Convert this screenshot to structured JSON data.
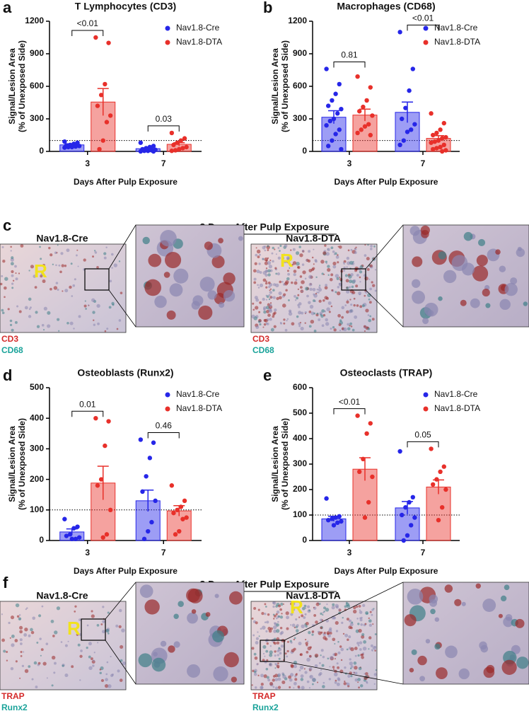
{
  "chart_data": [
    {
      "panel": "a",
      "type": "bar",
      "title": "T Lymphocytes (CD3)",
      "ylabel": [
        "Signal/Lesion Area",
        "(% of Unexposed Side)"
      ],
      "xlabel": "Days After Pulp Exposure",
      "categories": [
        "3",
        "7"
      ],
      "ylim": [
        0,
        1200
      ],
      "yticks": [
        0,
        300,
        600,
        900,
        1200
      ],
      "refline": 100,
      "comparisons": [
        "<0.01",
        "0.03"
      ],
      "series": [
        {
          "name": "Nav1.8-Cre",
          "color": "#2626e8",
          "values": [
            60,
            25
          ],
          "errors": [
            10,
            8
          ],
          "points": [
            [
              90,
              80,
              70,
              60,
              55,
              50,
              45,
              40,
              40,
              35
            ],
            [
              80,
              50,
              40,
              30,
              20,
              15,
              10,
              5,
              5,
              0,
              0
            ]
          ]
        },
        {
          "name": "Nav1.8-DTA",
          "color": "#e8302a",
          "values": [
            455,
            65
          ],
          "errors": [
            125,
            15
          ],
          "points": [
            [
              1050,
              1000,
              620,
              520,
              420,
              330,
              270,
              100,
              20
            ],
            [
              170,
              120,
              100,
              80,
              60,
              40,
              30,
              20,
              10,
              5
            ]
          ]
        }
      ]
    },
    {
      "panel": "b",
      "type": "bar",
      "title": "Macrophages (CD68)",
      "ylabel": [
        "Signal/Lesion Area",
        "(% of Unexposed Side)"
      ],
      "xlabel": "Days After Pulp Exposure",
      "categories": [
        "3",
        "7"
      ],
      "ylim": [
        0,
        1200
      ],
      "yticks": [
        0,
        300,
        600,
        900,
        1200
      ],
      "refline": 100,
      "comparisons": [
        "0.81",
        "<0.01"
      ],
      "series": [
        {
          "name": "Nav1.8-Cre",
          "color": "#2626e8",
          "values": [
            315,
            360
          ],
          "errors": [
            60,
            95
          ],
          "points": [
            [
              760,
              620,
              530,
              470,
              420,
              390,
              350,
              300,
              280,
              240,
              200,
              160,
              100,
              50,
              20
            ],
            [
              1100,
              760,
              560,
              400,
              300,
              250,
              200,
              180,
              100,
              60
            ]
          ]
        },
        {
          "name": "Nav1.8-DTA",
          "color": "#e8302a",
          "values": [
            335,
            120
          ],
          "errors": [
            55,
            25
          ],
          "points": [
            [
              690,
              590,
              470,
              410,
              370,
              330,
              250,
              230,
              200,
              170,
              150
            ],
            [
              350,
              260,
              200,
              170,
              150,
              130,
              120,
              100,
              90,
              80,
              60,
              40,
              30,
              20,
              10,
              0
            ]
          ]
        }
      ]
    },
    {
      "panel": "d",
      "type": "bar",
      "title": "Osteoblasts (Runx2)",
      "ylabel": [
        "Signal/Lesion Area",
        "(% of Unexposed Side)"
      ],
      "xlabel": "Days After Pulp Exposure",
      "categories": [
        "3",
        "7"
      ],
      "ylim": [
        0,
        500
      ],
      "yticks": [
        0,
        100,
        200,
        300,
        400,
        500
      ],
      "refline": 100,
      "comparisons": [
        "0.01",
        "0.46"
      ],
      "series": [
        {
          "name": "Nav1.8-Cre",
          "color": "#2626e8",
          "values": [
            28,
            130
          ],
          "errors": [
            10,
            35
          ],
          "points": [
            [
              70,
              45,
              40,
              20,
              15,
              10,
              5,
              5
            ],
            [
              330,
              320,
              270,
              210,
              160,
              130,
              60,
              30,
              5
            ]
          ]
        },
        {
          "name": "Nav1.8-DTA",
          "color": "#e8302a",
          "values": [
            188,
            97
          ],
          "errors": [
            55,
            17
          ],
          "points": [
            [
              400,
              390,
              310,
              200,
              180,
              100,
              20,
              10
            ],
            [
              180,
              130,
              110,
              100,
              90,
              75,
              70,
              30,
              20
            ]
          ]
        }
      ]
    },
    {
      "panel": "e",
      "type": "bar",
      "title": "Osteoclasts (TRAP)",
      "ylabel": [
        "Signal/Lesion Area",
        "(% of Unexposed Side)"
      ],
      "xlabel": "Days After Pulp Exposure",
      "categories": [
        "3",
        "7"
      ],
      "ylim": [
        0,
        600
      ],
      "yticks": [
        0,
        100,
        200,
        300,
        400,
        500,
        600
      ],
      "refline": 100,
      "comparisons": [
        "<0.01",
        "0.05"
      ],
      "series": [
        {
          "name": "Nav1.8-Cre",
          "color": "#2626e8",
          "values": [
            85,
            128
          ],
          "errors": [
            10,
            25
          ],
          "points": [
            [
              165,
              95,
              90,
              85,
              80,
              75,
              70,
              60
            ],
            [
              350,
              170,
              150,
              130,
              100,
              90,
              60,
              20,
              0
            ]
          ]
        },
        {
          "name": "Nav1.8-DTA",
          "color": "#e8302a",
          "values": [
            280,
            210
          ],
          "errors": [
            45,
            28
          ],
          "points": [
            [
              490,
              460,
              420,
              320,
              270,
              250,
              150,
              90
            ],
            [
              360,
              290,
              270,
              240,
              220,
              200,
              130,
              80
            ]
          ]
        }
      ]
    }
  ],
  "image_panels": [
    {
      "panel": "c",
      "title": "3 Days After Pulp Exposure",
      "left": {
        "label": "Nav1.8-Cre",
        "marker": "R",
        "stains": [
          "CD3",
          "CD68"
        ]
      },
      "right": {
        "label": "Nav1.8-DTA",
        "marker": "R",
        "stains": [
          "CD3",
          "CD68"
        ]
      }
    },
    {
      "panel": "f",
      "title": "3 Days After Pulp Exposure",
      "left": {
        "label": "Nav1.8-Cre",
        "marker": "R",
        "stains": [
          "TRAP",
          "Runx2"
        ]
      },
      "right": {
        "label": "Nav1.8-DTA",
        "marker": "R",
        "stains": [
          "TRAP",
          "Runx2"
        ]
      }
    }
  ]
}
